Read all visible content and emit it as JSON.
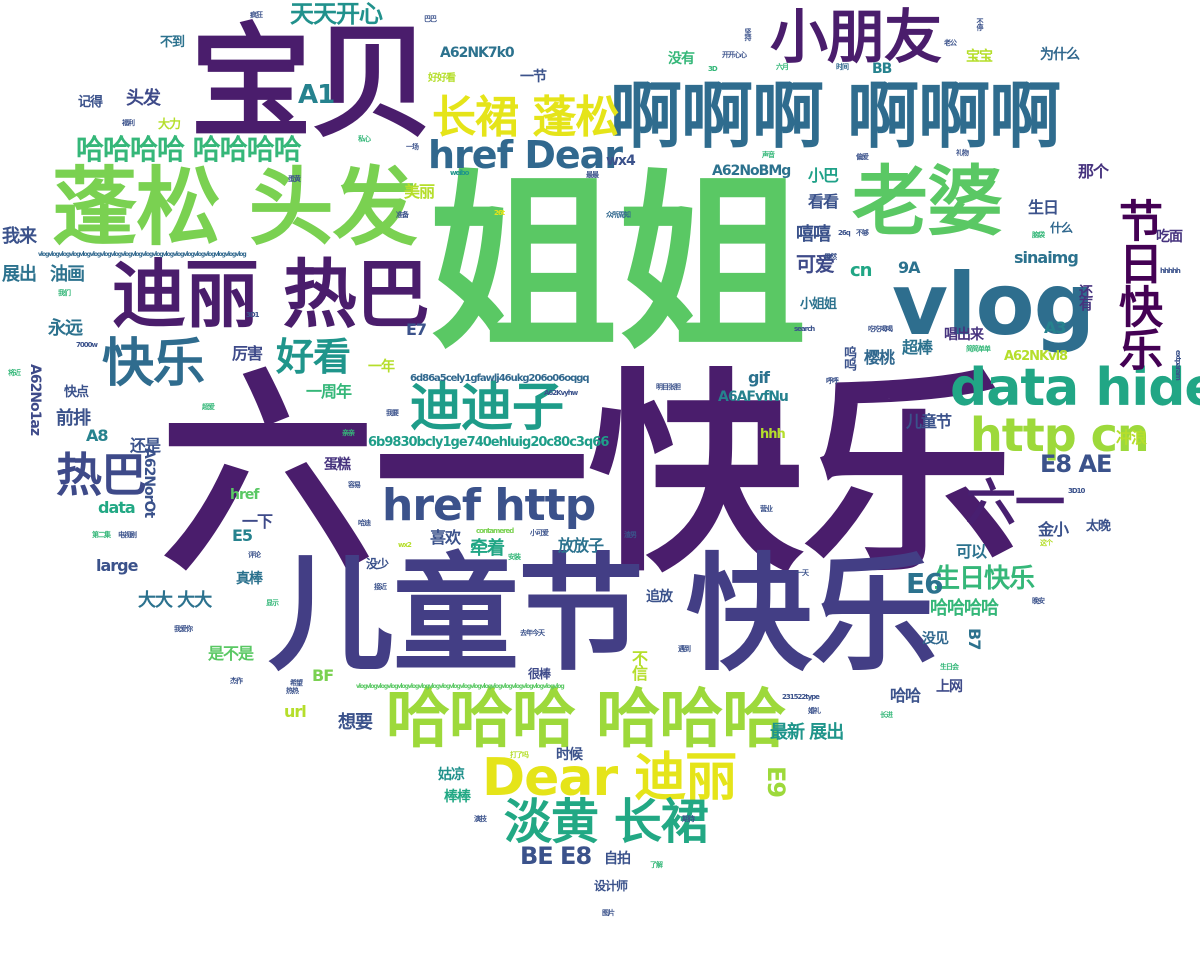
{
  "words": [
    {
      "text": "六一快乐",
      "color": "#4a1d6c"
    },
    {
      "text": "姐姐",
      "color": "#5ac864"
    },
    {
      "text": "儿童节 快乐",
      "color": "#433e85"
    },
    {
      "text": "宝贝",
      "color": "#4a1d6c"
    },
    {
      "text": "啊啊啊 啊啊啊",
      "color": "#2f6c8e"
    },
    {
      "text": "蓬松 头发",
      "color": "#7ad151"
    },
    {
      "text": "老婆",
      "color": "#5ac864"
    },
    {
      "text": "vlog",
      "color": "#2e6e8e"
    },
    {
      "text": "小朋友",
      "color": "#4a1d6c"
    },
    {
      "text": "迪丽 热巴",
      "color": "#4a1d6c"
    },
    {
      "text": "Dear 迪丽",
      "color": "#e5e419"
    },
    {
      "text": "哈哈哈 哈哈哈",
      "color": "#9dd93b"
    },
    {
      "text": "data hide",
      "color": "#21a685"
    },
    {
      "text": "href http",
      "color": "#3b528b"
    },
    {
      "text": "http cn",
      "color": "#9dd93b"
    },
    {
      "text": "长裙 蓬松",
      "color": "#e5e419"
    },
    {
      "text": "href Dear",
      "color": "#31688e"
    },
    {
      "text": "迪迪子",
      "color": "#1e9c89"
    },
    {
      "text": "快乐",
      "color": "#2f6c8e"
    },
    {
      "text": "热巴",
      "color": "#3e4a89"
    },
    {
      "text": "淡黄 长裙",
      "color": "#22a884"
    },
    {
      "text": "节日快乐",
      "color": "#440154"
    },
    {
      "text": "六一",
      "color": "#481f70"
    },
    {
      "text": "好看",
      "color": "#1f958b"
    },
    {
      "text": "哈哈哈哈 哈哈哈哈",
      "color": "#35b779"
    },
    {
      "text": "生日快乐",
      "color": "#35b779"
    },
    {
      "text": "天天开心",
      "color": "#21918c"
    },
    {
      "text": "A1",
      "color": "#26828e"
    },
    {
      "text": "E6",
      "color": "#2c728e"
    },
    {
      "text": "E8 AE",
      "color": "#3b528b"
    },
    {
      "text": "BE E8",
      "color": "#3b528b"
    },
    {
      "text": "E9",
      "color": "#9dd93b"
    },
    {
      "text": "A62NK7k0",
      "color": "#2c728e"
    },
    {
      "text": "6b9830bcly1ge740ehluig20c80c3q66",
      "color": "#1f9e89"
    },
    {
      "text": "A62NoBMg",
      "color": "#2c728e"
    },
    {
      "text": "A6AFvfNu",
      "color": "#26828e"
    },
    {
      "text": "A62NKvl8",
      "color": "#b5de2b"
    },
    {
      "text": "6d86a5cely1gfawlj46ukg206o06oqgq",
      "color": "#31688e"
    },
    {
      "text": "A62NorOt",
      "color": "#3b528b"
    },
    {
      "text": "A62No1az",
      "color": "#3e4a89"
    },
    {
      "text": "sinaimg",
      "color": "#2c728e"
    },
    {
      "text": "vlogvlogvlogvlogvlogvlogvlogvlogvlogvlogvlogvlogvlogvlogvlogvlogvlogvlogvlogvlog",
      "color": "#31688e"
    },
    {
      "text": "vlogvlogvlogvlogvlogvlogvlogvlogvlogvlogvlogvlogvlogvlogvlogvlogvlogvlogvlogvlog",
      "color": "#5ac864"
    },
    {
      "text": "哈哈哈哈",
      "color": "#35b779"
    },
    {
      "text": "大大 大大",
      "color": "#2c728e"
    },
    {
      "text": "头发",
      "color": "#3e4a89"
    },
    {
      "text": "我来",
      "color": "#3b528b"
    },
    {
      "text": "展出",
      "color": "#2c728e"
    },
    {
      "text": "油画",
      "color": "#2c728e"
    },
    {
      "text": "永远",
      "color": "#2c728e"
    },
    {
      "text": "前排",
      "color": "#3b528b"
    },
    {
      "text": "A8",
      "color": "#26828e"
    },
    {
      "text": "还是",
      "color": "#3b528b"
    },
    {
      "text": "可爱",
      "color": "#3e4a89"
    },
    {
      "text": "cn",
      "color": "#21a685"
    },
    {
      "text": "小巴",
      "color": "#1fa188"
    },
    {
      "text": "看看",
      "color": "#3b528b"
    },
    {
      "text": "嘻嘻",
      "color": "#3b528b"
    },
    {
      "text": "9A",
      "color": "#2c728e"
    },
    {
      "text": "E7",
      "color": "#3b528b"
    },
    {
      "text": "A3",
      "color": "#26828e"
    },
    {
      "text": "超棒",
      "color": "#2c728e"
    },
    {
      "text": "唱出来",
      "color": "#46337e"
    },
    {
      "text": "樱桃",
      "color": "#31688e"
    },
    {
      "text": "gif",
      "color": "#2c728e"
    },
    {
      "text": "儿童节",
      "color": "#3b528b"
    },
    {
      "text": "厉害",
      "color": "#3e4a89"
    },
    {
      "text": "一周年",
      "color": "#35b779"
    },
    {
      "text": "一年",
      "color": "#b5de2b"
    },
    {
      "text": "美丽",
      "color": "#b5de2b"
    },
    {
      "text": "那个",
      "color": "#46337e"
    },
    {
      "text": "生日",
      "color": "#3b528b"
    },
    {
      "text": "什么",
      "color": "#31688e"
    },
    {
      "text": "吃面",
      "color": "#46337e"
    },
    {
      "text": "还有",
      "color": "#46337e"
    },
    {
      "text": "冲浪",
      "color": "#b5de2b"
    },
    {
      "text": "蛋糕",
      "color": "#46337e"
    },
    {
      "text": "href",
      "color": "#5ac864"
    },
    {
      "text": "data",
      "color": "#22a884"
    },
    {
      "text": "一下",
      "color": "#3e4a89"
    },
    {
      "text": "E5",
      "color": "#26828e"
    },
    {
      "text": "large",
      "color": "#3b528b"
    },
    {
      "text": "真棒",
      "color": "#2c728e"
    },
    {
      "text": "喜欢",
      "color": "#3b528b"
    },
    {
      "text": "牵着",
      "color": "#21a685"
    },
    {
      "text": "放放子",
      "color": "#2c728e"
    },
    {
      "text": "可以",
      "color": "#2c728e"
    },
    {
      "text": "金小",
      "color": "#3b528b"
    },
    {
      "text": "太晚",
      "color": "#3b528b"
    },
    {
      "text": "追放",
      "color": "#3b528b"
    },
    {
      "text": "没见",
      "color": "#31688e"
    },
    {
      "text": "B7",
      "color": "#2c728e"
    },
    {
      "text": "是不是",
      "color": "#5ac864"
    },
    {
      "text": "BF",
      "color": "#7ad151"
    },
    {
      "text": "url",
      "color": "#b5de2b"
    },
    {
      "text": "想要",
      "color": "#3b528b"
    },
    {
      "text": "最新 展出",
      "color": "#1f958b"
    },
    {
      "text": "哈哈",
      "color": "#3b528b"
    },
    {
      "text": "上网",
      "color": "#3e4a89"
    },
    {
      "text": "姑凉",
      "color": "#21918c"
    },
    {
      "text": "棒棒",
      "color": "#22a884"
    },
    {
      "text": "时候",
      "color": "#3b528b"
    },
    {
      "text": "自拍",
      "color": "#3b528b"
    },
    {
      "text": "设计师",
      "color": "#3b528b"
    },
    {
      "text": "很棒",
      "color": "#3e4a89"
    },
    {
      "text": "不信",
      "color": "#b5de2b"
    },
    {
      "text": "没少",
      "color": "#3b528b"
    },
    {
      "text": "wx4",
      "color": "#3b528b"
    },
    {
      "text": "一节",
      "color": "#3b528b"
    },
    {
      "text": "BB",
      "color": "#26828e"
    },
    {
      "text": "宝宝",
      "color": "#b5de2b"
    },
    {
      "text": "没有",
      "color": "#35b779"
    },
    {
      "text": "为什么",
      "color": "#31688e"
    },
    {
      "text": "不到",
      "color": "#2c728e"
    },
    {
      "text": "记得",
      "color": "#3b528b"
    },
    {
      "text": "大力",
      "color": "#b5de2b"
    },
    {
      "text": "小姐姐",
      "color": "#2c728e"
    },
    {
      "text": "快点",
      "color": "#3b528b"
    },
    {
      "text": "hhh",
      "color": "#b5de2b"
    },
    {
      "text": "好好看",
      "color": "#b5de2b"
    },
    {
      "text": "疯狂",
      "color": "#3b528b"
    },
    {
      "text": "巴巴",
      "color": "#3b528b"
    },
    {
      "text": "开开心心",
      "color": "#3b528b"
    },
    {
      "text": "六月",
      "color": "#35b779"
    },
    {
      "text": "时间",
      "color": "#31688e"
    },
    {
      "text": "老公",
      "color": "#3b528b"
    },
    {
      "text": "不停",
      "color": "#3b528b"
    },
    {
      "text": "福利",
      "color": "#3b528b"
    },
    {
      "text": "私心",
      "color": "#35b779"
    },
    {
      "text": "一场",
      "color": "#3b528b"
    },
    {
      "text": "偏爱",
      "color": "#3b528b"
    },
    {
      "text": "礼物",
      "color": "#3b528b"
    },
    {
      "text": "声音",
      "color": "#35b779"
    },
    {
      "text": "weibo",
      "color": "#1f958b"
    },
    {
      "text": "最最",
      "color": "#3b528b"
    },
    {
      "text": "准备",
      "color": "#3b528b"
    },
    {
      "text": "26t",
      "color": "#e5e419"
    },
    {
      "text": "众所周知",
      "color": "#31688e"
    },
    {
      "text": "26q",
      "color": "#3b528b"
    },
    {
      "text": "hhhhh",
      "color": "#3b528b"
    },
    {
      "text": "我们",
      "color": "#35b779"
    },
    {
      "text": "3D1",
      "color": "#3b528b"
    },
    {
      "text": "search",
      "color": "#3b528b"
    },
    {
      "text": "吃吃喝喝",
      "color": "#3b528b"
    },
    {
      "text": "7000w",
      "color": "#3b528b"
    },
    {
      "text": "明目张胆",
      "color": "#3b528b"
    },
    {
      "text": "A62Kvyhw",
      "color": "#3b528b"
    },
    {
      "text": "extparam",
      "color": "#3b528b"
    },
    {
      "text": "3D10",
      "color": "#3b528b"
    },
    {
      "text": "contamered",
      "color": "#7ad151"
    },
    {
      "text": "wx2",
      "color": "#b5de2b"
    },
    {
      "text": "231522type",
      "color": "#3b528b"
    },
    {
      "text": "电视剧",
      "color": "#3b528b"
    },
    {
      "text": "第二集",
      "color": "#35b779"
    },
    {
      "text": "我爱你",
      "color": "#3b528b"
    },
    {
      "text": "去年今天",
      "color": "#3b528b"
    },
    {
      "text": "杰作",
      "color": "#3b528b"
    },
    {
      "text": "热热",
      "color": "#3b528b"
    },
    {
      "text": "图片",
      "color": "#3b528b"
    },
    {
      "text": "了解",
      "color": "#35b779"
    },
    {
      "text": "期待",
      "color": "#3b528b"
    },
    {
      "text": "演技",
      "color": "#3b528b"
    },
    {
      "text": "婚礼",
      "color": "#3b528b"
    },
    {
      "text": "生日会",
      "color": "#35b779"
    },
    {
      "text": "长进",
      "color": "#35b779"
    },
    {
      "text": "一天",
      "color": "#3b528b"
    },
    {
      "text": "晚安",
      "color": "#3b528b"
    },
    {
      "text": "接近",
      "color": "#3b528b"
    },
    {
      "text": "评论",
      "color": "#3b528b"
    },
    {
      "text": "小可爱",
      "color": "#3b528b"
    },
    {
      "text": "安装",
      "color": "#35b779"
    },
    {
      "text": "我要",
      "color": "#3b528b"
    },
    {
      "text": "容易",
      "color": "#3b528b"
    },
    {
      "text": "亲亲",
      "color": "#35b779"
    },
    {
      "text": "超爱",
      "color": "#35b779"
    },
    {
      "text": "将近",
      "color": "#35b779"
    },
    {
      "text": "显示",
      "color": "#35b779"
    },
    {
      "text": "蛋黄",
      "color": "#3b528b"
    },
    {
      "text": "营业",
      "color": "#3b528b"
    },
    {
      "text": "渣男",
      "color": "#3b528b"
    },
    {
      "text": "呼呼",
      "color": "#3b528b"
    },
    {
      "text": "哈迪",
      "color": "#3b528b"
    },
    {
      "text": "这个",
      "color": "#b5de2b"
    },
    {
      "text": "3D",
      "color": "#35b779"
    },
    {
      "text": "果然",
      "color": "#3b528b"
    },
    {
      "text": "呜呜",
      "color": "#3b528b"
    },
    {
      "text": "不够",
      "color": "#3b528b"
    },
    {
      "text": "脑袋",
      "color": "#35b779"
    },
    {
      "text": "坚持",
      "color": "#3b528b"
    },
    {
      "text": "简简单单",
      "color": "#35b779"
    },
    {
      "text": "遇到",
      "color": "#3b528b"
    },
    {
      "text": "打了吗",
      "color": "#b5de2b"
    },
    {
      "text": "希望",
      "color": "#3b528b"
    }
  ]
}
